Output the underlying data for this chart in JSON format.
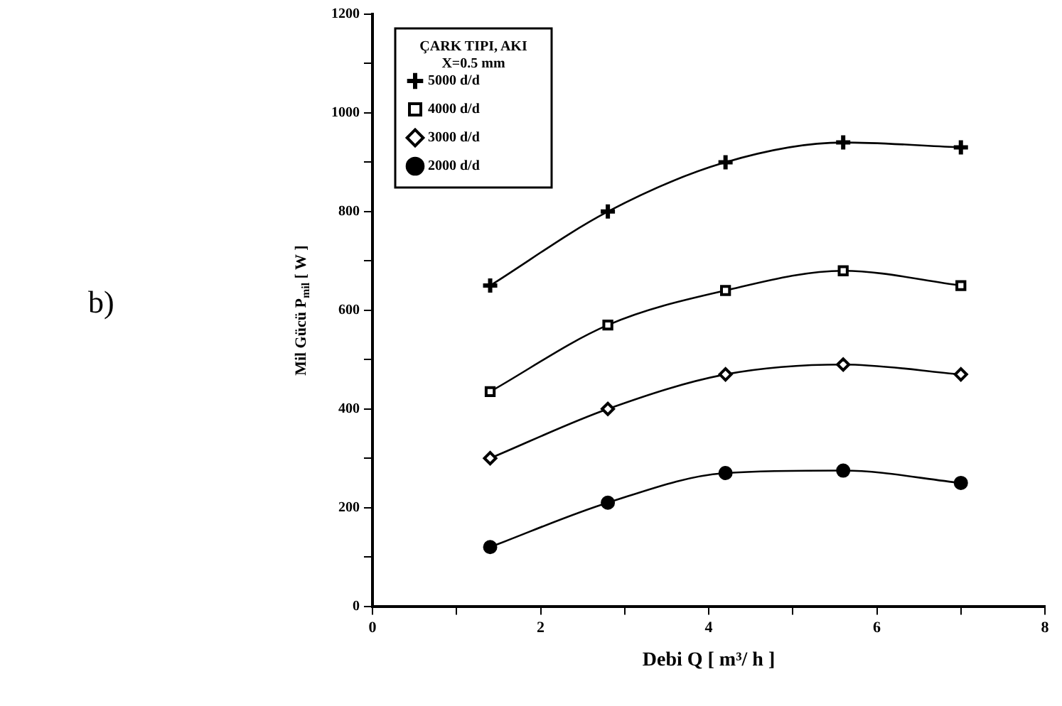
{
  "chart_data": {
    "type": "line",
    "xlabel": "Debi Q [ m³/ h ]",
    "ylabel": "Mil Gücü P$_{mil}$ [ W ]",
    "legend_title": "ÇARK TIPI, AKI\nX=0.5 mm",
    "annotations": [
      "b)"
    ],
    "x": [
      1.4,
      2.8,
      4.2,
      5.6,
      7.0
    ],
    "xlim": [
      0,
      8
    ],
    "xticks": [
      0,
      {
        "value": 1,
        "label": null
      },
      2,
      {
        "value": 3,
        "label": null
      },
      4,
      {
        "value": 5,
        "label": null
      },
      6,
      {
        "value": 7,
        "label": null
      },
      8
    ],
    "ylim": [
      0,
      1200
    ],
    "yticks": [
      0,
      {
        "value": 100,
        "label": null
      },
      200,
      {
        "value": 300,
        "label": null
      },
      400,
      {
        "value": 500,
        "label": null
      },
      600,
      {
        "value": 700,
        "label": null
      },
      800,
      {
        "value": 900,
        "label": null
      },
      1000,
      {
        "value": 1100,
        "label": null
      },
      1200
    ],
    "grid": false,
    "legend": "top left",
    "line_style": "solid",
    "series": [
      {
        "name": "5000 d/d",
        "color": "#000000",
        "marker": "cross",
        "values": [
          650,
          800,
          900,
          940,
          930
        ]
      },
      {
        "name": "4000 d/d",
        "color": "#000000",
        "marker": "square",
        "values": [
          435,
          570,
          640,
          680,
          650
        ]
      },
      {
        "name": "3000 d/d",
        "color": "#000000",
        "marker": "diamond",
        "values": [
          300,
          400,
          470,
          490,
          470
        ]
      },
      {
        "name": "2000 d/d",
        "color": "#000000",
        "marker": "circle",
        "values": [
          120,
          210,
          270,
          275,
          250
        ]
      }
    ]
  }
}
